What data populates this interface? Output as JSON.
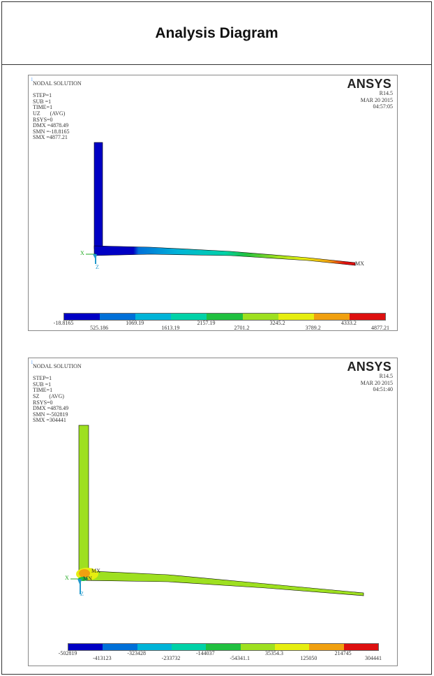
{
  "title": "Analysis Diagram",
  "colors": {
    "legend": [
      "#0000c4",
      "#0070d8",
      "#00b4d8",
      "#00d2a8",
      "#20c040",
      "#9ee020",
      "#e6ee10",
      "#f0a010",
      "#dd1010"
    ]
  },
  "plot1": {
    "corner": "1",
    "info_lines": [
      "NODAL SOLUTION",
      "",
      "STEP=1",
      "SUB =1",
      "TIME=1",
      "UZ       (AVG)",
      "RSYS=0",
      "DMX =4878.49",
      "SMN =-18.8165",
      "SMX =4877.21"
    ],
    "logo": "ANSYS",
    "version": "R14.5",
    "date": "MAR 20 2015",
    "time": "04:57:05",
    "mx_label": "MX",
    "x_label": "X",
    "z_label": "Z",
    "ticks_top": [
      "-18.8165",
      "1069.19",
      "2157.19",
      "3245.2",
      "4333.2"
    ],
    "ticks_bottom": [
      "525.186",
      "1613.19",
      "2701.2",
      "3789.2",
      "4877.21"
    ]
  },
  "plot2": {
    "corner": "1",
    "info_lines": [
      "NODAL SOLUTION",
      "",
      "STEP=1",
      "SUB =1",
      "TIME=1",
      "SZ       (AVG)",
      "RSYS=0",
      "DMX =4878.49",
      "SMN =-502819",
      "SMX =304441"
    ],
    "logo": "ANSYS",
    "version": "R14.5",
    "date": "MAR 20 2015",
    "time": "04:51:40",
    "mx_label": "MX",
    "mn_label": "MN",
    "x_label": "X",
    "z_label": "Z",
    "ticks_top": [
      "-502819",
      "-323428",
      "-144037",
      "35354.3",
      "214745"
    ],
    "ticks_bottom": [
      "-413123",
      "-233732",
      "-54341.1",
      "125050",
      "304441"
    ]
  }
}
